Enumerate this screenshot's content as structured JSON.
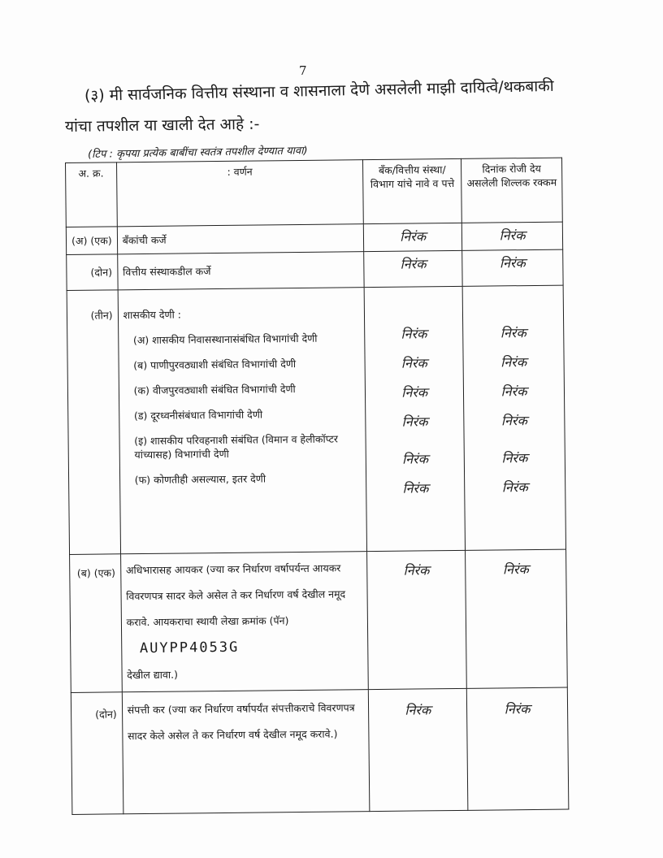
{
  "page_number": "7",
  "intro": {
    "line1": "(३)   मी सार्वजनिक वित्तीय संस्थाना व शासनाला देणे असलेली माझी दायित्वे/थकबाकी",
    "line2": "यांचा तपशील या खाली देत आहे :-"
  },
  "note": "(टिप :  कृपया प्रत्येक बाबींचा स्वतंत्र तपशील देण्यात यावा)",
  "table": {
    "headers": [
      "अ. क्र.",
      ":   वर्णन",
      "बँक/वित्तीय संस्था/ विभाग यांचे नावे व पत्ते",
      "दिनांक रोजी देय असलेली शिल्लक रक्कम"
    ],
    "rows": [
      {
        "no": "(अ) (एक)",
        "desc": "बँकांची कर्जे",
        "bank": "निरंक",
        "amount": "निरंक"
      },
      {
        "no": "(दोन)",
        "desc": "वित्तीय संस्थाकडील कर्जे",
        "bank": "निरंक",
        "amount": "निरंक"
      },
      {
        "no": "(तीन)",
        "desc": "शासकीय देणी :",
        "subitems": [
          {
            "desc": "(अ) शासकीय निवासस्थानासंबंधित विभागांची देणी",
            "bank": "निरंक",
            "amount": "निरंक"
          },
          {
            "desc": "(ब) पाणीपुरवठ्याशी संबंधित विभागांची देणी",
            "bank": "निरंक",
            "amount": "निरंक"
          },
          {
            "desc": "(क) वीजपुरवठ्याशी संबंधित विभागांची देणी",
            "bank": "निरंक",
            "amount": "निरंक"
          },
          {
            "desc": "(ड) दूरध्वनीसंबंधात विभागांची देणी",
            "bank": "निरंक",
            "amount": "निरंक"
          },
          {
            "desc": "(इ) शासकीय परिवहनाशी संबंधित (विमान व हेलीकॉप्टर यांच्यासह) विभागांची देणी",
            "bank": "निरंक",
            "amount": "निरंक"
          },
          {
            "desc": "(फ) कोणतीही असल्यास, इतर देणी",
            "bank": "निरंक",
            "amount": "निरंक"
          }
        ]
      },
      {
        "no": "(ब) (एक)",
        "desc": "अधिभारासह आयकर (ज्या कर निर्धारण वर्षापर्यन्त आयकर विवरणपत्र सादर केले असेल ते कर निर्धारण वर्ष देखील नमूद करावे.  आयकराचा स्थायी लेखा क्रमांक (पॅन)",
        "pan": "AUYPP4053G",
        "desc_end": "देखील द्यावा.)",
        "bank": "निरंक",
        "amount": "निरंक"
      },
      {
        "no": "(दोन)",
        "desc": "संपत्ती कर (ज्या कर निर्धारण वर्षापर्यंत संपत्तीकराचे विवरणपत्र सादर केले असेल ते कर निर्धारण वर्ष देखील नमूद करावे.)",
        "bank": "निरंक",
        "amount": "निरंक"
      }
    ]
  }
}
